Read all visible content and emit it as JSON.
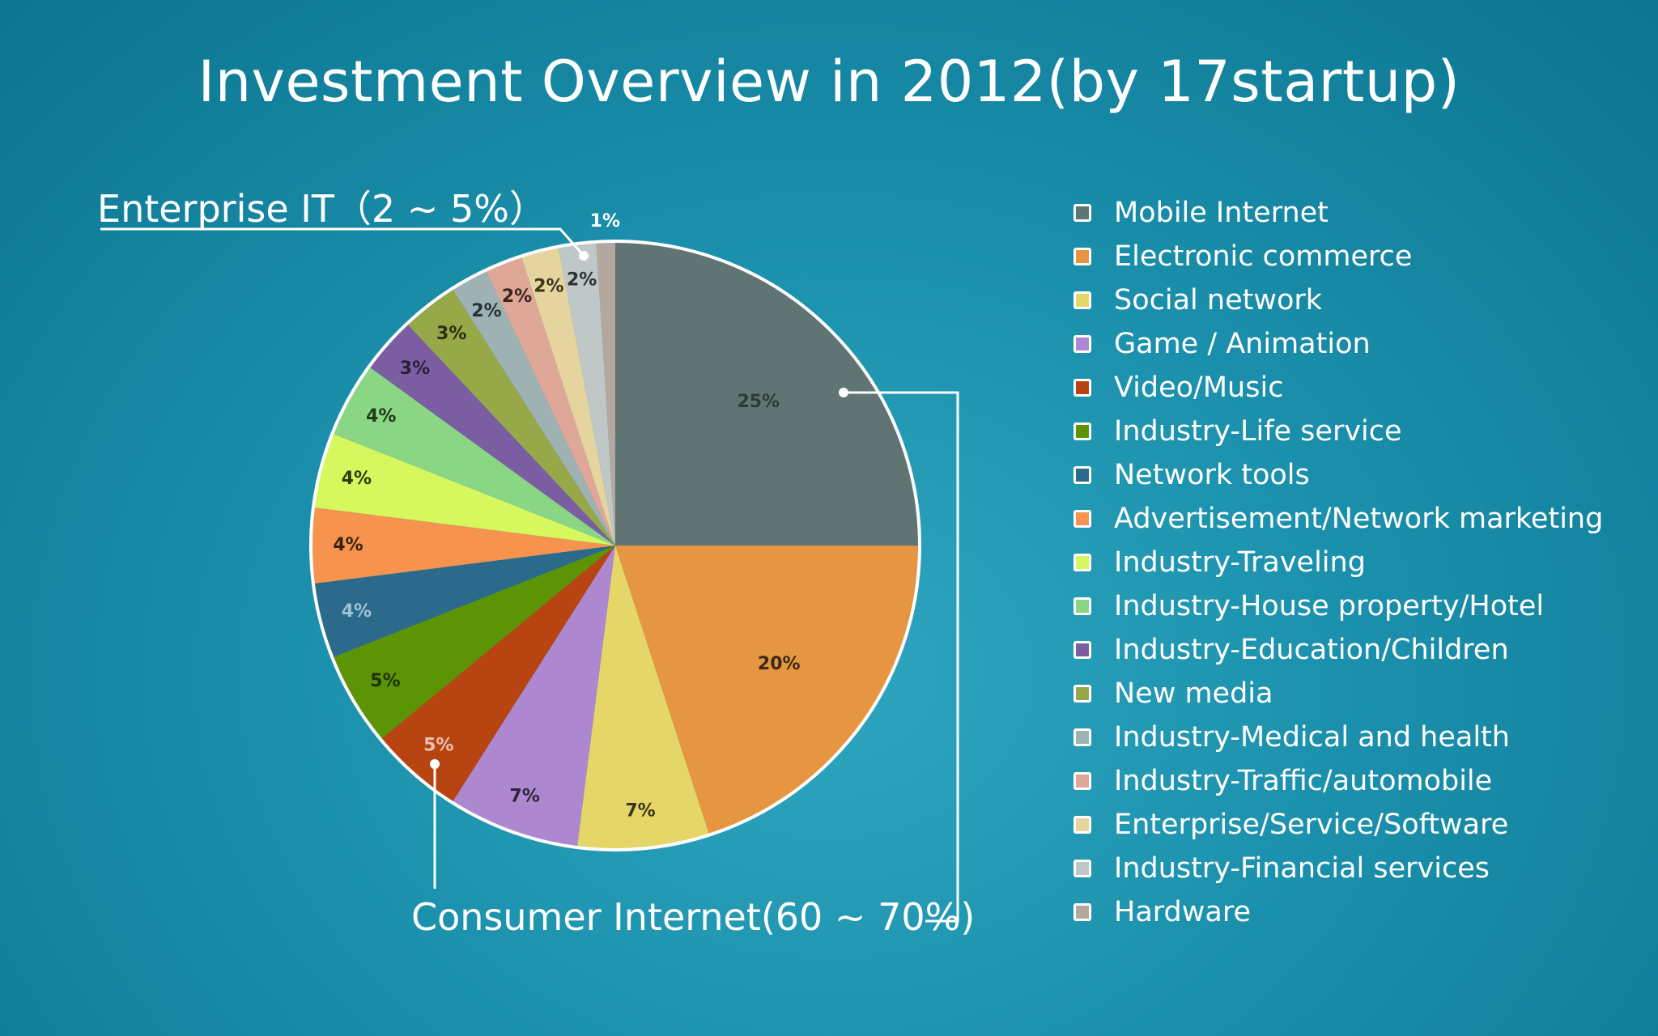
{
  "chart_data": {
    "type": "pie",
    "title": "Investment Overview in 2012(by 17startup)",
    "slices": [
      {
        "name": "Mobile Internet",
        "value": 25,
        "label": "25%",
        "color": "#5f7473",
        "label_color": "#2c3a3a"
      },
      {
        "name": "Electronic commerce",
        "value": 20,
        "label": "20%",
        "color": "#e69640",
        "label_color": "#3a2a1a"
      },
      {
        "name": "Social network",
        "value": 7,
        "label": "7%",
        "color": "#e5d767",
        "label_color": "#3a351a"
      },
      {
        "name": "Game / Animation",
        "value": 7,
        "label": "7%",
        "color": "#ad88d0",
        "label_color": "#2f2440"
      },
      {
        "name": "Video/Music",
        "value": 5,
        "label": "5%",
        "color": "#b84412",
        "label_color": "#e6c2b0"
      },
      {
        "name": "Industry-Life service",
        "value": 5,
        "label": "5%",
        "color": "#5c9406",
        "label_color": "#1e3202"
      },
      {
        "name": "Network tools",
        "value": 4,
        "label": "4%",
        "color": "#2b6a8b",
        "label_color": "#9fc3d6"
      },
      {
        "name": "Advertisement/Network marketing",
        "value": 4,
        "label": "4%",
        "color": "#f5934f",
        "label_color": "#3a2212"
      },
      {
        "name": "Industry-Traveling",
        "value": 4,
        "label": "4%",
        "color": "#d6f85e",
        "label_color": "#2f3a10"
      },
      {
        "name": "Industry-House property/Hotel",
        "value": 4,
        "label": "4%",
        "color": "#8bd684",
        "label_color": "#1d3a1a"
      },
      {
        "name": "Industry-Education/Children",
        "value": 3,
        "label": "3%",
        "color": "#7b5ea1",
        "label_color": "#2a1f3a"
      },
      {
        "name": "New media",
        "value": 3,
        "label": "3%",
        "color": "#96a848",
        "label_color": "#2a3012"
      },
      {
        "name": "Industry-Medical and health",
        "value": 2,
        "label": "2%",
        "color": "#9eb1b3",
        "label_color": "#263234"
      },
      {
        "name": "Industry-Traffic/automobile",
        "value": 2,
        "label": "2%",
        "color": "#dfa797",
        "label_color": "#3a2520"
      },
      {
        "name": "Enterprise/Service/Software",
        "value": 2,
        "label": "2%",
        "color": "#e6d49e",
        "label_color": "#3a3420"
      },
      {
        "name": "Industry-Financial services",
        "value": 2,
        "label": "2%",
        "color": "#c0c7c7",
        "label_color": "#2e3434"
      },
      {
        "name": "Hardware",
        "value": 1,
        "label": "1%",
        "color": "#b3a89d",
        "label_color": "#ffffff"
      }
    ],
    "legend_position": "right",
    "annotations": [
      {
        "text": "Enterprise IT（2 ~ 5%）"
      },
      {
        "text": "Consumer Internet(60 ~ 70%)"
      }
    ]
  },
  "colors": {
    "background": "#1b90ac",
    "slice_border": "#ffffff",
    "callout_line": "#ffffff"
  }
}
